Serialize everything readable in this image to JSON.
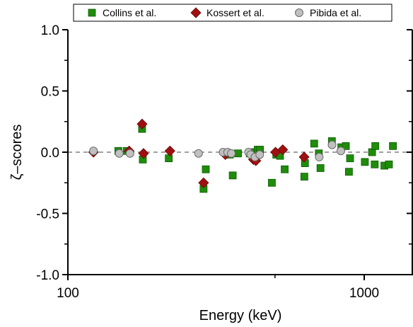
{
  "chart_data": {
    "type": "scatter",
    "xlabel": "Energy (keV)",
    "ylabel": "ζ–scores",
    "xscale": "log",
    "xlim": [
      100,
      1400
    ],
    "ylim": [
      -1.0,
      1.0
    ],
    "x_ticks": [
      100,
      1000
    ],
    "x_tick_labels": [
      "100",
      "1000"
    ],
    "y_ticks": [
      -1.0,
      -0.5,
      0.0,
      0.5,
      1.0
    ],
    "y_tick_labels": [
      "-1.0",
      "-0.5",
      "0.0",
      "0.5",
      "1.0"
    ],
    "reference_line": {
      "y": 0.0,
      "style": "dashed",
      "color": "#808080"
    },
    "legend_position": "top",
    "grid": false,
    "series": [
      {
        "name": "Collins et al.",
        "marker": "square",
        "color": "#1f8c0a",
        "edge": "#0d5a05",
        "points": [
          {
            "x": 148,
            "y": 0.01
          },
          {
            "x": 158,
            "y": 0.01
          },
          {
            "x": 178,
            "y": 0.19
          },
          {
            "x": 179,
            "y": -0.06
          },
          {
            "x": 219,
            "y": -0.05
          },
          {
            "x": 287,
            "y": -0.3
          },
          {
            "x": 292,
            "y": -0.14
          },
          {
            "x": 352,
            "y": -0.02
          },
          {
            "x": 360,
            "y": -0.19
          },
          {
            "x": 375,
            "y": -0.01
          },
          {
            "x": 411,
            "y": -0.01
          },
          {
            "x": 426,
            "y": 0.0
          },
          {
            "x": 437,
            "y": 0.02
          },
          {
            "x": 445,
            "y": 0.02
          },
          {
            "x": 488,
            "y": -0.25
          },
          {
            "x": 505,
            "y": -0.02
          },
          {
            "x": 520,
            "y": -0.03
          },
          {
            "x": 539,
            "y": -0.14
          },
          {
            "x": 628,
            "y": -0.2
          },
          {
            "x": 631,
            "y": -0.09
          },
          {
            "x": 678,
            "y": 0.07
          },
          {
            "x": 703,
            "y": -0.01
          },
          {
            "x": 712,
            "y": -0.13
          },
          {
            "x": 778,
            "y": 0.09
          },
          {
            "x": 837,
            "y": 0.04
          },
          {
            "x": 867,
            "y": 0.05
          },
          {
            "x": 888,
            "y": -0.16
          },
          {
            "x": 896,
            "y": -0.05
          },
          {
            "x": 1005,
            "y": -0.08
          },
          {
            "x": 1063,
            "y": 0.0
          },
          {
            "x": 1085,
            "y": -0.1
          },
          {
            "x": 1090,
            "y": 0.05
          },
          {
            "x": 1170,
            "y": -0.11
          },
          {
            "x": 1212,
            "y": -0.1
          },
          {
            "x": 1250,
            "y": 0.05
          }
        ]
      },
      {
        "name": "Kossert et al.",
        "marker": "diamond",
        "color": "#a01010",
        "edge": "#6a0808",
        "points": [
          {
            "x": 122,
            "y": 0.0
          },
          {
            "x": 161,
            "y": 0.01
          },
          {
            "x": 178,
            "y": 0.23
          },
          {
            "x": 180,
            "y": -0.01
          },
          {
            "x": 221,
            "y": 0.01
          },
          {
            "x": 287,
            "y": -0.25
          },
          {
            "x": 340,
            "y": -0.02
          },
          {
            "x": 423,
            "y": -0.06
          },
          {
            "x": 431,
            "y": -0.07
          },
          {
            "x": 502,
            "y": 0.0
          },
          {
            "x": 531,
            "y": 0.02
          },
          {
            "x": 627,
            "y": -0.04
          }
        ]
      },
      {
        "name": "Pibida et al.",
        "marker": "circle",
        "color": "#c0c0c0",
        "edge": "#6a6a6a",
        "points": [
          {
            "x": 122,
            "y": 0.01
          },
          {
            "x": 149,
            "y": -0.01
          },
          {
            "x": 162,
            "y": -0.01
          },
          {
            "x": 276,
            "y": -0.01
          },
          {
            "x": 334,
            "y": 0.0
          },
          {
            "x": 346,
            "y": 0.0
          },
          {
            "x": 356,
            "y": -0.01
          },
          {
            "x": 407,
            "y": 0.0
          },
          {
            "x": 414,
            "y": -0.02
          },
          {
            "x": 428,
            "y": -0.04
          },
          {
            "x": 444,
            "y": -0.02
          },
          {
            "x": 705,
            "y": -0.04
          },
          {
            "x": 779,
            "y": 0.06
          },
          {
            "x": 834,
            "y": 0.01
          }
        ]
      }
    ]
  }
}
